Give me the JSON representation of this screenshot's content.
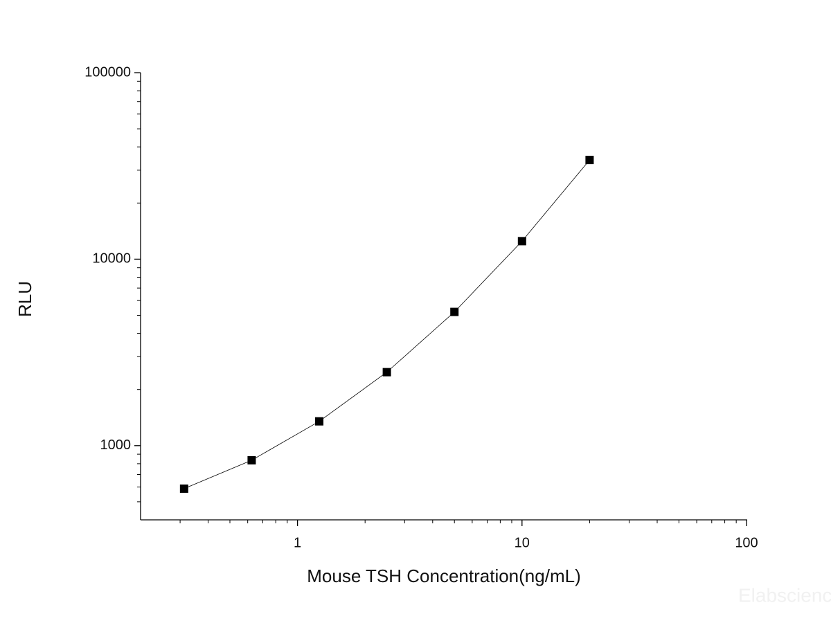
{
  "chart_data": {
    "type": "scatter-line",
    "x_label": "Mouse TSH Concentration(ng/mL)",
    "y_label": "RLU",
    "watermark": "Elabscience",
    "x": [
      0.3125,
      0.625,
      1.25,
      2.5,
      5,
      10,
      20
    ],
    "series": [
      {
        "name": "RLU",
        "color": "#000000",
        "values": [
          588,
          835,
          1350,
          2478,
          5214,
          12490,
          34030
        ]
      }
    ],
    "x_log": true,
    "y_log": true,
    "xlim": [
      0.2,
      100
    ],
    "ylim": [
      400,
      100000
    ],
    "xticks": [
      1,
      10,
      100
    ],
    "yticks": [
      1000,
      10000,
      100000
    ],
    "xminor_ticks": [
      0.3,
      0.4,
      0.5,
      0.6,
      0.7,
      0.8,
      0.9,
      2,
      3,
      4,
      5,
      6,
      7,
      8,
      9,
      20,
      30,
      40,
      50,
      60,
      70,
      80,
      90
    ],
    "yminor_ticks": [
      500,
      600,
      700,
      800,
      900,
      2000,
      3000,
      4000,
      5000,
      6000,
      7000,
      8000,
      9000,
      20000,
      30000,
      40000,
      50000,
      60000,
      70000,
      80000,
      90000
    ]
  }
}
